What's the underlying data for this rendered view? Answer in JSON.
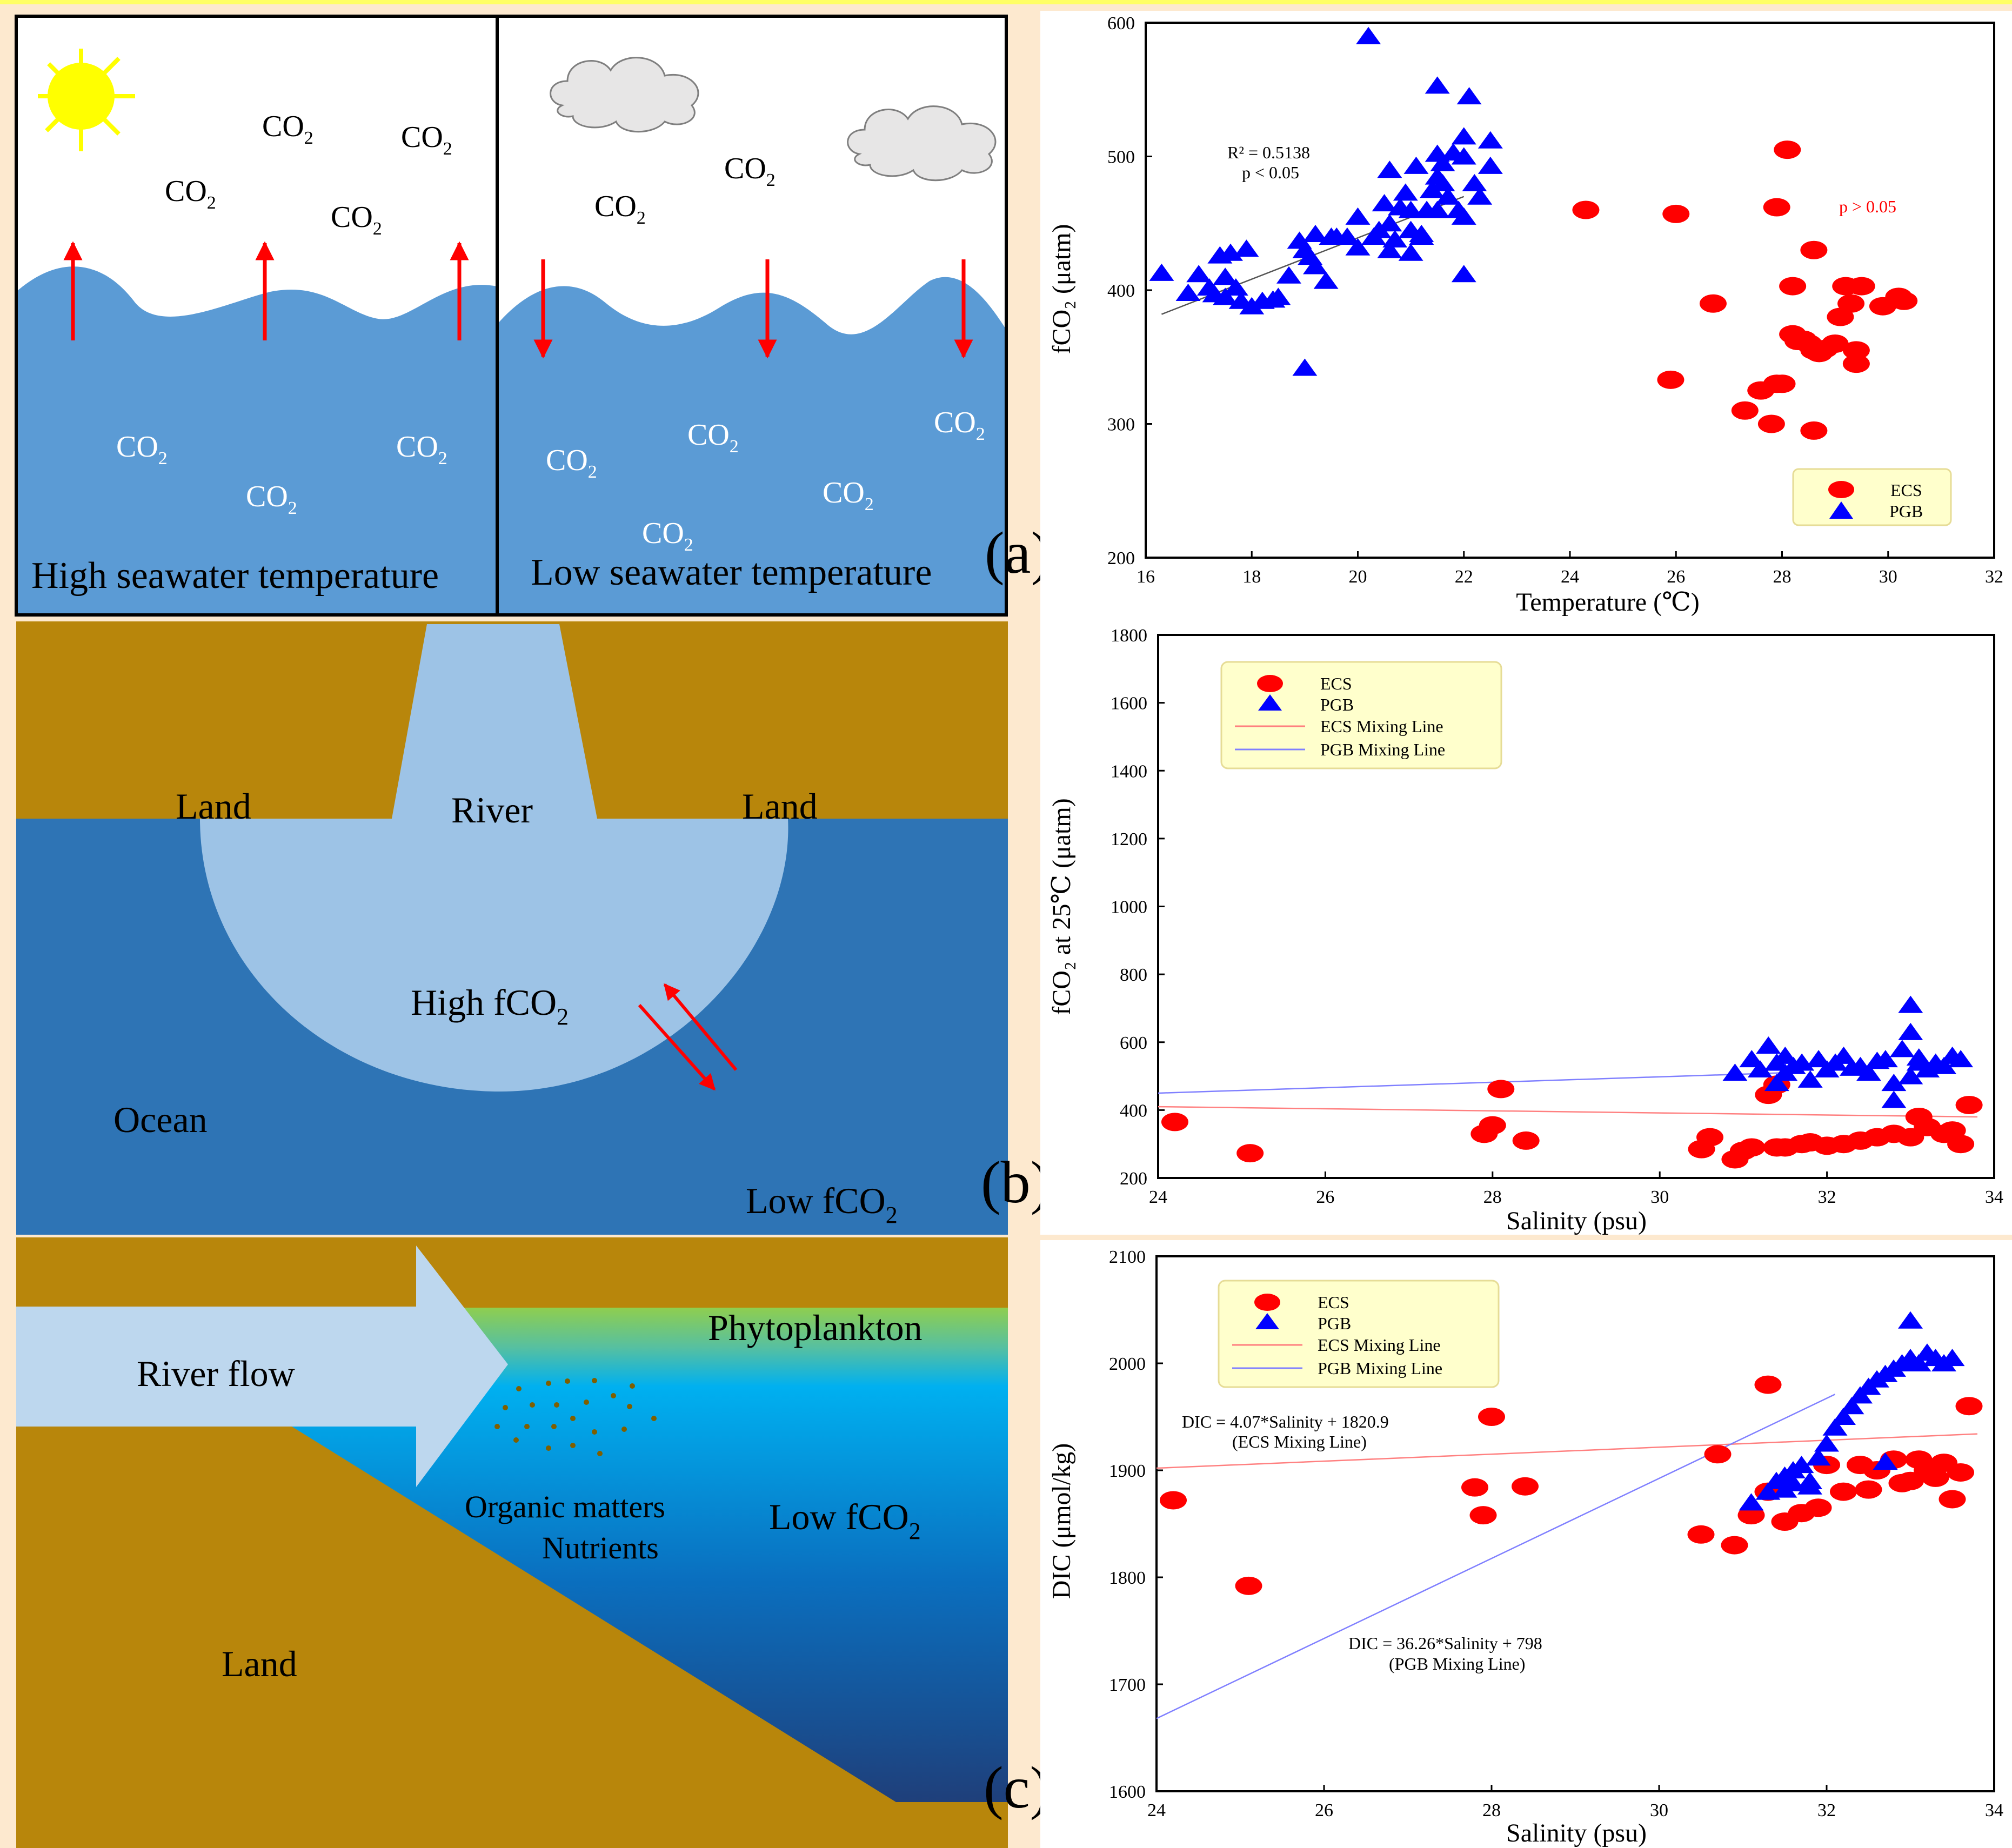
{
  "colors": {
    "background": "#fde9cf",
    "sea": "#5b9bd5",
    "ocean": "#2e74b5",
    "river_water": "#9dc3e6",
    "land": "#b8860b",
    "sun": "#ffff00",
    "ecs": "#ff0000",
    "pgb": "#0000ff",
    "legend_bg": "#ffffcc"
  },
  "panel_labels": {
    "a": "(a)",
    "b": "(b)",
    "c": "(c)"
  },
  "schematic_a": {
    "left_caption": "High seawater temperature",
    "right_caption": "Low seawater temperature",
    "gas": "CO"
  },
  "schematic_b": {
    "land_left": "Land",
    "river": "River",
    "land_right": "Land",
    "high": "High fCO",
    "ocean": "Ocean",
    "low": "Low fCO"
  },
  "schematic_c": {
    "river_flow": "River flow",
    "phytoplankton": "Phytoplankton",
    "organic": "Organic matters",
    "nutrients": "Nutrients",
    "low": "Low fCO",
    "land": "Land"
  },
  "chart_data": [
    {
      "type": "scatter",
      "xlabel": "Temperature (℃)",
      "ylabel": "fCO₂ (μatm)",
      "xlim": [
        16,
        32
      ],
      "ylim": [
        200,
        600
      ],
      "xticks": [
        16,
        18,
        20,
        22,
        24,
        26,
        28,
        30,
        32
      ],
      "yticks": [
        200,
        300,
        400,
        500,
        600
      ],
      "legend": [
        "ECS",
        "PGB"
      ],
      "legend_position": "bottom-right",
      "annotations": [
        "R² = 0.5138",
        "p < 0.05",
        "p > 0.05"
      ],
      "fit_line": {
        "name": "PGB fit",
        "x": [
          16.3,
          22.0
        ],
        "y": [
          382,
          470
        ]
      },
      "series": [
        {
          "name": "ECS",
          "marker": "circle",
          "x": [
            24.3,
            26.0,
            25.9,
            26.7,
            27.3,
            27.6,
            27.8,
            28.0,
            28.1,
            28.2,
            28.2,
            28.4,
            28.5,
            28.6,
            28.7,
            28.8,
            28.6,
            29.0,
            29.1,
            29.2,
            29.3,
            29.4,
            29.4,
            29.5,
            29.9,
            30.2,
            30.3,
            27.9,
            28.6,
            27.9,
            28.3
          ],
          "y": [
            460,
            457,
            333,
            390,
            310,
            325,
            300,
            330,
            505,
            367,
            403,
            363,
            360,
            355,
            353,
            356,
            430,
            360,
            380,
            403,
            390,
            355,
            345,
            403,
            388,
            395,
            392,
            462,
            295,
            330,
            362
          ]
        },
        {
          "name": "PGB",
          "marker": "triangle",
          "x": [
            16.3,
            16.8,
            17.0,
            17.2,
            17.3,
            17.4,
            17.5,
            17.5,
            17.6,
            17.7,
            17.8,
            17.9,
            18.0,
            18.2,
            18.4,
            18.5,
            18.7,
            18.9,
            19.0,
            19.0,
            19.1,
            19.2,
            19.2,
            19.4,
            19.5,
            19.8,
            20.0,
            20.0,
            20.2,
            20.3,
            20.4,
            20.5,
            20.6,
            20.6,
            20.7,
            20.8,
            20.9,
            21.0,
            21.0,
            21.1,
            21.2,
            21.3,
            21.4,
            21.5,
            21.5,
            21.6,
            21.6,
            21.7,
            21.8,
            21.9,
            22.0,
            22.0,
            22.1,
            22.2,
            22.3,
            22.5,
            22.5,
            22.0,
            22.0,
            21.5,
            21.5,
            19.6,
            20.6,
            21.0,
            21.2
          ],
          "y": [
            413,
            398,
            412,
            402,
            397,
            426,
            410,
            395,
            428,
            402,
            392,
            431,
            388,
            392,
            393,
            395,
            411,
            437,
            430,
            342,
            425,
            442,
            418,
            407,
            440,
            440,
            455,
            432,
            590,
            440,
            445,
            465,
            450,
            490,
            438,
            462,
            473,
            460,
            428,
            493,
            442,
            460,
            475,
            553,
            460,
            480,
            495,
            470,
            503,
            460,
            515,
            412,
            545,
            480,
            470,
            512,
            493,
            500,
            455,
            502,
            485,
            440,
            430,
            445,
            440
          ]
        }
      ]
    },
    {
      "type": "scatter",
      "xlabel": "Salinity (psu)",
      "ylabel": "fCO₂ at 25℃ (μatm)",
      "xlim": [
        24,
        34
      ],
      "ylim": [
        200,
        1800
      ],
      "xticks": [
        24,
        26,
        28,
        30,
        32,
        34
      ],
      "yticks": [
        200,
        400,
        600,
        800,
        1000,
        1200,
        1400,
        1600,
        1800
      ],
      "legend": [
        "ECS",
        "PGB",
        "ECS Mixing Line",
        "PGB Mixing Line"
      ],
      "legend_position": "top-left",
      "mixing_lines": [
        {
          "name": "ECS Mixing Line",
          "x": [
            24,
            33.8
          ],
          "y": [
            410,
            380
          ]
        },
        {
          "name": "PGB Mixing Line",
          "x": [
            24,
            31.5
          ],
          "y": [
            450,
            510
          ]
        }
      ],
      "series": [
        {
          "name": "ECS",
          "marker": "circle",
          "x": [
            24.2,
            25.1,
            27.9,
            28.0,
            28.1,
            28.4,
            30.5,
            30.6,
            30.9,
            31.0,
            31.1,
            31.3,
            31.4,
            31.4,
            31.5,
            31.7,
            31.8,
            32.0,
            32.2,
            32.4,
            32.6,
            32.8,
            33.0,
            33.1,
            33.2,
            33.4,
            33.5,
            33.6,
            33.7
          ],
          "y": [
            365,
            273,
            330,
            355,
            462,
            310,
            285,
            320,
            255,
            280,
            290,
            445,
            475,
            290,
            290,
            300,
            305,
            295,
            300,
            310,
            320,
            330,
            320,
            380,
            350,
            330,
            340,
            300,
            415
          ]
        },
        {
          "name": "PGB",
          "marker": "triangle",
          "x": [
            30.9,
            31.1,
            31.2,
            31.3,
            31.4,
            31.5,
            31.5,
            31.6,
            31.7,
            31.8,
            31.9,
            32.0,
            32.1,
            32.2,
            32.3,
            32.4,
            32.5,
            32.6,
            32.7,
            32.8,
            32.9,
            33.0,
            33.0,
            33.0,
            33.1,
            33.2,
            33.3,
            33.4,
            33.5,
            33.6,
            31.4,
            32.8,
            33.1
          ],
          "y": [
            510,
            550,
            520,
            590,
            540,
            560,
            510,
            530,
            540,
            490,
            550,
            520,
            540,
            560,
            525,
            530,
            510,
            545,
            550,
            480,
            580,
            500,
            630,
            710,
            555,
            520,
            540,
            530,
            560,
            550,
            480,
            430,
            540
          ]
        }
      ]
    },
    {
      "type": "scatter",
      "xlabel": "Salinity (psu)",
      "ylabel": "DIC (μmol/kg)",
      "xlim": [
        24,
        34
      ],
      "ylim": [
        1600,
        2100
      ],
      "xticks": [
        24,
        26,
        28,
        30,
        32,
        34
      ],
      "yticks": [
        1600,
        1700,
        1800,
        1900,
        2000,
        2100
      ],
      "legend": [
        "ECS",
        "PGB",
        "ECS Mixing Line",
        "PGB Mixing Line"
      ],
      "legend_position": "top-left",
      "annotations": [
        "DIC = 4.07*Salinity + 1820.9",
        "(ECS Mixing Line)",
        "DIC = 36.26*Salinity + 798",
        "(PGB Mixing Line)"
      ],
      "mixing_lines": [
        {
          "name": "ECS Mixing Line",
          "x": [
            24,
            33.8
          ],
          "y": [
            1902,
            1934
          ]
        },
        {
          "name": "PGB Mixing Line",
          "x": [
            24,
            32.1
          ],
          "y": [
            1668,
            1971
          ]
        }
      ],
      "series": [
        {
          "name": "ECS",
          "marker": "circle",
          "x": [
            24.2,
            25.1,
            27.8,
            27.9,
            28.0,
            28.4,
            30.5,
            30.7,
            30.9,
            31.1,
            31.3,
            31.3,
            31.5,
            31.7,
            31.9,
            32.0,
            32.2,
            32.4,
            32.5,
            32.6,
            32.8,
            32.9,
            33.0,
            33.1,
            33.2,
            33.3,
            33.4,
            33.5,
            33.6,
            33.7
          ],
          "y": [
            1872,
            1792,
            1884,
            1858,
            1950,
            1885,
            1840,
            1915,
            1830,
            1858,
            1880,
            1980,
            1852,
            1860,
            1865,
            1905,
            1880,
            1905,
            1882,
            1900,
            1910,
            1888,
            1890,
            1910,
            1900,
            1893,
            1907,
            1873,
            1898,
            1960
          ]
        },
        {
          "name": "PGB",
          "marker": "triangle",
          "x": [
            31.1,
            31.3,
            31.4,
            31.5,
            31.6,
            31.7,
            31.8,
            31.9,
            32.0,
            32.1,
            32.2,
            32.3,
            32.4,
            32.5,
            32.6,
            32.7,
            32.8,
            32.9,
            33.0,
            33.0,
            33.1,
            33.2,
            33.3,
            33.4,
            33.5,
            31.5,
            31.6,
            31.8,
            32.7
          ],
          "y": [
            1870,
            1880,
            1890,
            1895,
            1900,
            1905,
            1890,
            1912,
            1925,
            1940,
            1950,
            1960,
            1970,
            1978,
            1985,
            1990,
            1995,
            2000,
            2005,
            2040,
            2000,
            2010,
            2005,
            2000,
            2005,
            1882,
            1888,
            1885,
            1908
          ]
        }
      ]
    }
  ]
}
